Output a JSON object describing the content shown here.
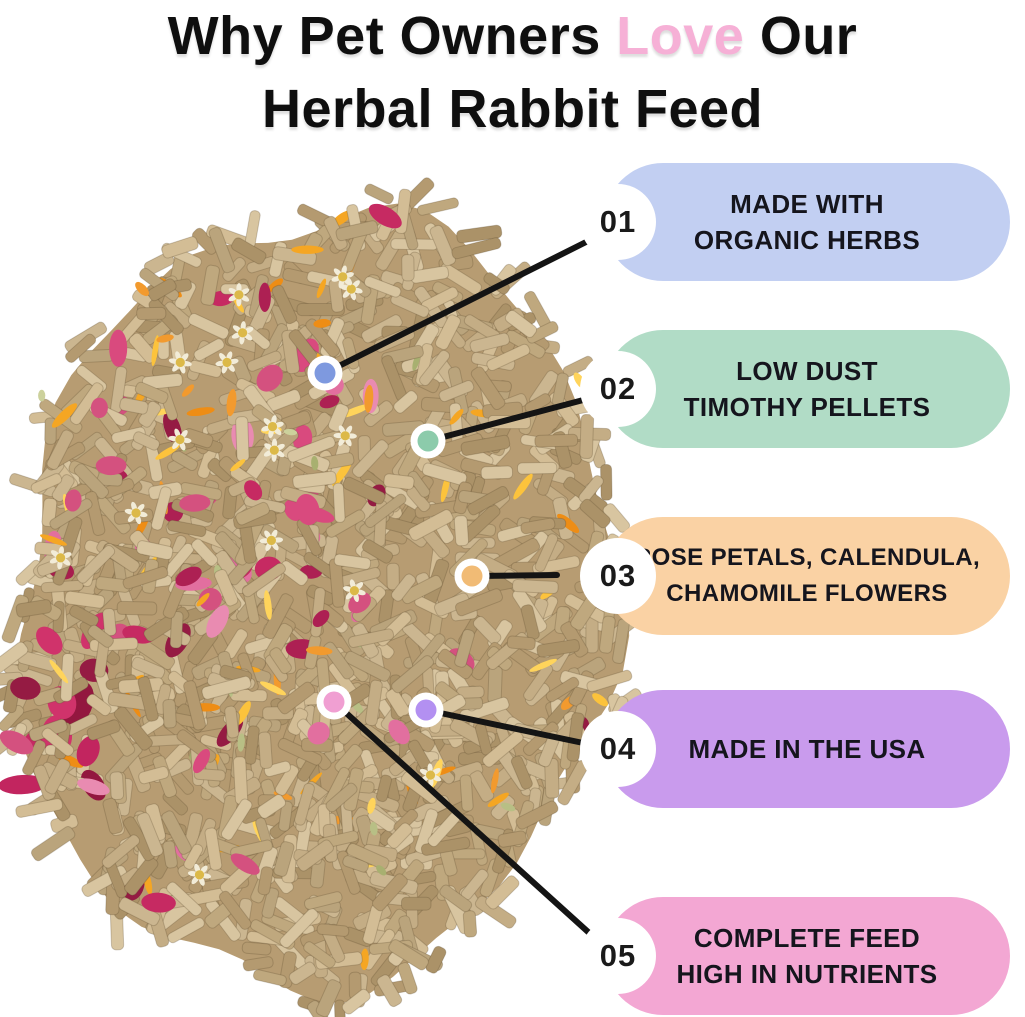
{
  "title": {
    "prefix": "Why Pet Owners ",
    "highlight": "Love",
    "suffix": " Our",
    "line2": "Herbal Rabbit Feed",
    "highlight_color": "#f6b0d6",
    "text_color": "#0f0f0f"
  },
  "callouts": [
    {
      "number": "01",
      "line1": "MADE WITH",
      "line2": "ORGANIC HERBS",
      "pill_color": "#c2cff2",
      "dot_color": "#7e99df"
    },
    {
      "number": "02",
      "line1": "LOW DUST",
      "line2": "TIMOTHY PELLETS",
      "pill_color": "#b1dcc6",
      "dot_color": "#8ccbab"
    },
    {
      "number": "03",
      "line1": "ROSE PETALS, CALENDULA,",
      "line2": "CHAMOMILE FLOWERS",
      "pill_color": "#fad2a4",
      "dot_color": "#f1bb75"
    },
    {
      "number": "04",
      "line1": "MADE IN THE USA",
      "line2": "",
      "pill_color": "#c99bed",
      "dot_color": "#b390f1"
    },
    {
      "number": "05",
      "line1": "COMPLETE FEED",
      "line2": "HIGH IN NUTRIENTS",
      "pill_color": "#f3a7d3",
      "dot_color": "#f09fd2"
    }
  ],
  "connector": {
    "line_color": "#141414",
    "dot_ring_color": "#ffffff"
  },
  "photo": {
    "subject": "Pile of herbal rabbit feed pellets with dried rose petals, calendula and chamomile flowers",
    "palette": {
      "pellet_base": "#b79c72",
      "pellet_shades": [
        "#cbb690",
        "#bfa87e",
        "#d3bd95",
        "#b49a70",
        "#c4ad85",
        "#baa47c",
        "#d8c5a0",
        "#ab9268"
      ],
      "rose_shades": [
        "#c62a62",
        "#d94a7e",
        "#ad2053",
        "#e26f9f",
        "#951b43",
        "#e98bb1",
        "#d4517f"
      ],
      "calendula_shades": [
        "#f5a623",
        "#fcc33c",
        "#ee8d15",
        "#ffd45b",
        "#f29a2e"
      ],
      "chamomile_petal": "#f2ecd8",
      "chamomile_center": "#dcb948",
      "green_herb_shades": [
        "#b8bf85",
        "#ccd19c",
        "#a8b070"
      ]
    }
  }
}
